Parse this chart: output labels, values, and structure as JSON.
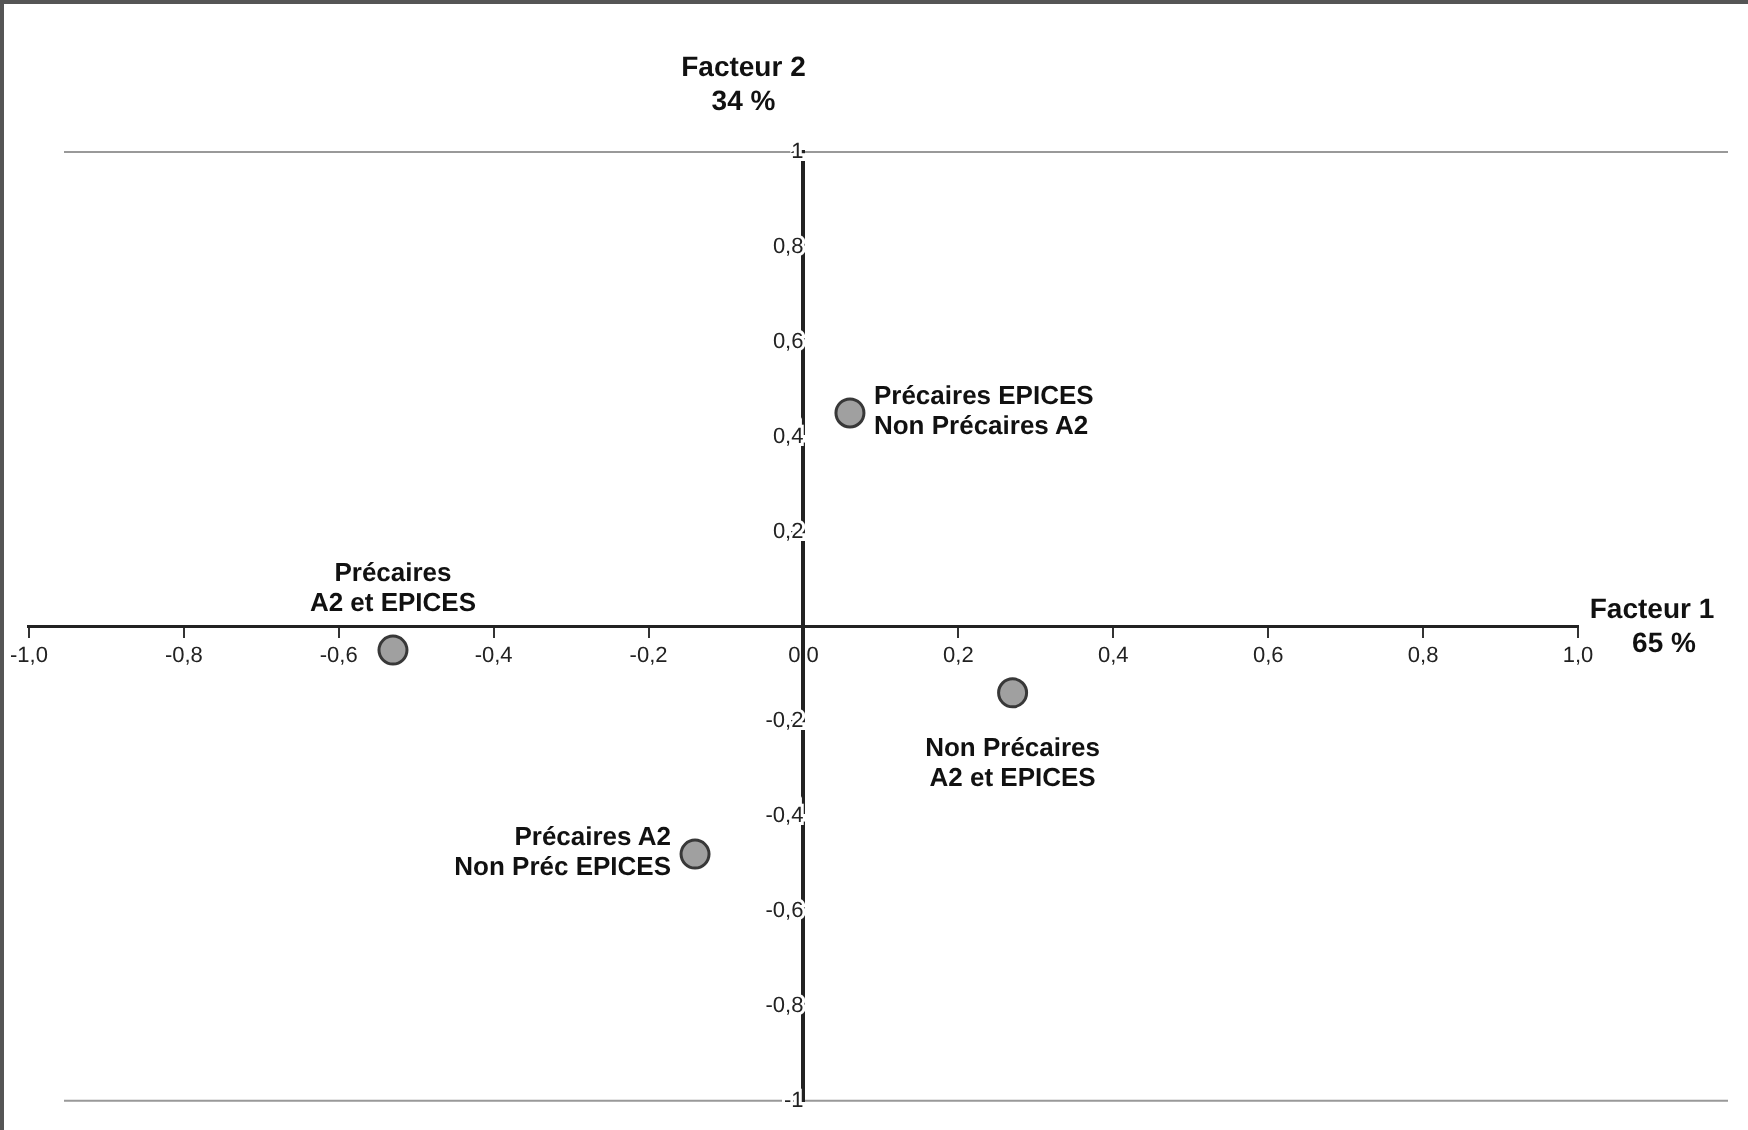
{
  "chart_data": {
    "type": "scatter",
    "xlabel": "Facteur 1\n65 %",
    "ylabel": "Facteur 2\n34 %",
    "x": [
      0.06,
      -0.53,
      0.27,
      -0.14
    ],
    "series": [
      {
        "color": "#a0a0a0",
        "values": [
          0.45,
          -0.05,
          -0.14,
          -0.48
        ]
      }
    ],
    "marker": "circle",
    "grid": false,
    "legend": false,
    "xlim": [
      -1,
      1
    ],
    "ylim": [
      -1,
      1
    ],
    "xticks": [
      {
        "value": -1,
        "label": "-1,0"
      },
      {
        "value": -0.8,
        "label": "-0,8"
      },
      {
        "value": -0.6,
        "label": "-0,6"
      },
      {
        "value": -0.4,
        "label": "-0,4"
      },
      {
        "value": -0.2,
        "label": "-0,2"
      },
      {
        "value": 0,
        "label": "0,0"
      },
      {
        "value": 0.2,
        "label": "0,2"
      },
      {
        "value": 0.4,
        "label": "0,4"
      },
      {
        "value": 0.6,
        "label": "0,6"
      },
      {
        "value": 0.8,
        "label": "0,8"
      },
      {
        "value": 1,
        "label": "1,0"
      }
    ],
    "yticks": [
      {
        "value": -1,
        "label": "-1"
      },
      {
        "value": -0.8,
        "label": "-0,8"
      },
      {
        "value": -0.6,
        "label": "-0,6"
      },
      {
        "value": -0.4,
        "label": "-0,4"
      },
      {
        "value": -0.2,
        "label": "-0,2"
      },
      {
        "value": 0,
        "label": null
      },
      {
        "value": 0.2,
        "label": "0,2"
      },
      {
        "value": 0.4,
        "label": "0,4"
      },
      {
        "value": 0.6,
        "label": "0,6"
      },
      {
        "value": 0.8,
        "label": "0,8"
      },
      {
        "value": 1,
        "label": "1"
      }
    ],
    "annotations": [
      {
        "text": "Précaires EPICES\nNon Précaires A2",
        "x": 0.06,
        "y": 0.45
      },
      {
        "text": "Précaires\nA2 et EPICES",
        "x": -0.53,
        "y": -0.05
      },
      {
        "text": "Non Précaires\nA2 et EPICES",
        "x": 0.27,
        "y": -0.14
      },
      {
        "text": "Précaires A2\nNon Préc EPICES",
        "x": -0.14,
        "y": -0.48
      }
    ]
  }
}
